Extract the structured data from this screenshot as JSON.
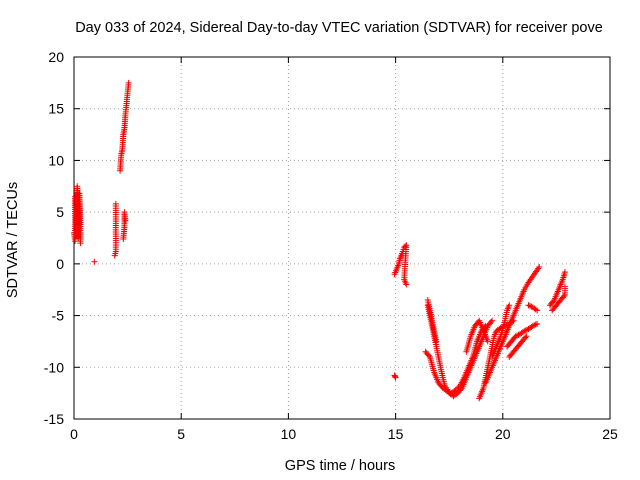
{
  "chart_data": {
    "type": "scatter",
    "title": "Day 033 of 2024, Sidereal Day-to-day VTEC variation (SDTVAR) for receiver pove",
    "xlabel": "GPS time / hours",
    "ylabel": "SDTVAR / TECUs",
    "xlim": [
      0,
      25
    ],
    "ylim": [
      -15,
      20
    ],
    "xticks": [
      0,
      5,
      10,
      15,
      20,
      25
    ],
    "yticks": [
      -15,
      -10,
      -5,
      0,
      5,
      10,
      15,
      20
    ],
    "grid": true,
    "marker": "+",
    "color": "#ff0000",
    "series": [
      {
        "name": "SDTVAR",
        "segments": [
          [
            [
              0.0,
              3.0
            ],
            [
              0.05,
              2.2
            ],
            [
              0.05,
              6.5
            ],
            [
              0.1,
              4.0
            ],
            [
              0.12,
              5.5
            ],
            [
              0.15,
              3.5
            ],
            [
              0.15,
              7.5
            ],
            [
              0.2,
              6.0
            ],
            [
              0.2,
              2.5
            ],
            [
              0.25,
              4.5
            ],
            [
              0.25,
              6.8
            ],
            [
              0.3,
              3.8
            ],
            [
              0.3,
              2.0
            ]
          ],
          [
            [
              0.95,
              0.2
            ]
          ],
          [
            [
              1.9,
              0.8
            ],
            [
              1.95,
              1.2
            ],
            [
              1.95,
              5.8
            ]
          ],
          [
            [
              2.15,
              9.0
            ],
            [
              2.2,
              10.5
            ],
            [
              2.25,
              11.0
            ],
            [
              2.3,
              12.5
            ],
            [
              2.35,
              13.0
            ],
            [
              2.4,
              14.5
            ],
            [
              2.45,
              15.5
            ],
            [
              2.5,
              16.5
            ],
            [
              2.55,
              17.5
            ]
          ],
          [
            [
              2.3,
              2.4
            ],
            [
              2.35,
              3.5
            ],
            [
              2.35,
              5.0
            ],
            [
              2.4,
              4.2
            ]
          ],
          [
            [
              14.95,
              -10.8
            ],
            [
              15.0,
              -11.0
            ]
          ],
          [
            [
              14.95,
              -1.0
            ],
            [
              15.05,
              -0.5
            ],
            [
              15.15,
              0.0
            ],
            [
              15.2,
              0.5
            ],
            [
              15.3,
              1.0
            ],
            [
              15.4,
              1.6
            ],
            [
              15.5,
              1.8
            ],
            [
              15.4,
              -1.5
            ],
            [
              15.5,
              -2.0
            ]
          ],
          [
            [
              16.5,
              -4.0
            ],
            [
              16.6,
              -5.0
            ],
            [
              16.7,
              -6.0
            ],
            [
              16.8,
              -7.0
            ],
            [
              16.9,
              -8.0
            ],
            [
              17.0,
              -9.0
            ],
            [
              17.1,
              -10.0
            ],
            [
              17.2,
              -11.0
            ],
            [
              17.3,
              -11.8
            ],
            [
              17.5,
              -12.5
            ],
            [
              17.7,
              -12.8
            ],
            [
              17.9,
              -12.5
            ],
            [
              18.1,
              -12.0
            ],
            [
              18.3,
              -11.0
            ],
            [
              18.5,
              -10.0
            ],
            [
              18.7,
              -9.0
            ],
            [
              18.9,
              -8.0
            ],
            [
              19.1,
              -7.0
            ],
            [
              19.3,
              -6.0
            ],
            [
              19.5,
              -5.5
            ]
          ],
          [
            [
              16.5,
              -3.5
            ],
            [
              16.7,
              -5.5
            ],
            [
              16.9,
              -7.5
            ]
          ],
          [
            [
              16.4,
              -8.5
            ],
            [
              16.6,
              -9.0
            ],
            [
              16.8,
              -10.5
            ],
            [
              17.0,
              -11.5
            ],
            [
              17.2,
              -12.0
            ],
            [
              17.4,
              -12.3
            ],
            [
              17.6,
              -12.5
            ],
            [
              17.8,
              -12.2
            ],
            [
              18.0,
              -11.8
            ],
            [
              18.2,
              -11.0
            ],
            [
              18.4,
              -10.0
            ],
            [
              18.6,
              -9.0
            ],
            [
              18.8,
              -7.5
            ],
            [
              19.0,
              -6.5
            ],
            [
              19.2,
              -6.0
            ]
          ],
          [
            [
              18.3,
              -8.5
            ],
            [
              18.5,
              -7.0
            ],
            [
              18.7,
              -6.0
            ],
            [
              18.9,
              -5.5
            ],
            [
              19.1,
              -6.5
            ],
            [
              19.3,
              -7.5
            ]
          ],
          [
            [
              18.9,
              -13.0
            ],
            [
              19.0,
              -12.5
            ],
            [
              19.1,
              -12.0
            ],
            [
              19.2,
              -11.0
            ],
            [
              19.3,
              -10.0
            ],
            [
              19.4,
              -9.0
            ],
            [
              19.5,
              -8.0
            ],
            [
              19.6,
              -7.0
            ],
            [
              19.7,
              -6.5
            ],
            [
              19.9,
              -6.2
            ],
            [
              20.1,
              -6.0
            ],
            [
              20.3,
              -5.8
            ],
            [
              20.5,
              -5.5
            ]
          ],
          [
            [
              19.2,
              -11.5
            ],
            [
              19.4,
              -10.5
            ],
            [
              19.6,
              -9.5
            ],
            [
              19.8,
              -8.5
            ],
            [
              20.0,
              -7.5
            ],
            [
              20.2,
              -6.5
            ],
            [
              20.4,
              -5.5
            ],
            [
              20.6,
              -4.5
            ],
            [
              20.8,
              -3.5
            ],
            [
              21.0,
              -2.5
            ],
            [
              21.2,
              -1.8
            ],
            [
              21.4,
              -1.2
            ],
            [
              21.6,
              -0.6
            ],
            [
              21.7,
              -0.3
            ]
          ],
          [
            [
              19.5,
              -9.0
            ],
            [
              19.7,
              -8.0
            ],
            [
              19.9,
              -7.0
            ],
            [
              20.1,
              -5.5
            ],
            [
              20.2,
              -4.5
            ],
            [
              20.3,
              -4.0
            ]
          ],
          [
            [
              20.2,
              -8.0
            ],
            [
              20.4,
              -7.5
            ],
            [
              20.6,
              -7.0
            ],
            [
              20.8,
              -6.8
            ],
            [
              21.0,
              -6.5
            ],
            [
              21.2,
              -6.3
            ],
            [
              21.4,
              -6.0
            ],
            [
              21.6,
              -5.8
            ]
          ],
          [
            [
              20.3,
              -9.0
            ],
            [
              20.5,
              -8.5
            ],
            [
              20.7,
              -8.0
            ],
            [
              20.9,
              -7.5
            ],
            [
              21.1,
              -7.0
            ]
          ],
          [
            [
              21.2,
              -4.0
            ],
            [
              21.4,
              -4.2
            ],
            [
              21.6,
              -4.5
            ]
          ],
          [
            [
              22.2,
              -4.0
            ],
            [
              22.4,
              -3.5
            ],
            [
              22.5,
              -3.0
            ],
            [
              22.6,
              -2.5
            ],
            [
              22.7,
              -2.0
            ],
            [
              22.8,
              -1.5
            ],
            [
              22.9,
              -0.8
            ]
          ],
          [
            [
              22.3,
              -4.5
            ],
            [
              22.5,
              -4.0
            ],
            [
              22.7,
              -3.5
            ],
            [
              22.9,
              -3.0
            ],
            [
              22.9,
              -2.2
            ]
          ]
        ]
      }
    ]
  }
}
